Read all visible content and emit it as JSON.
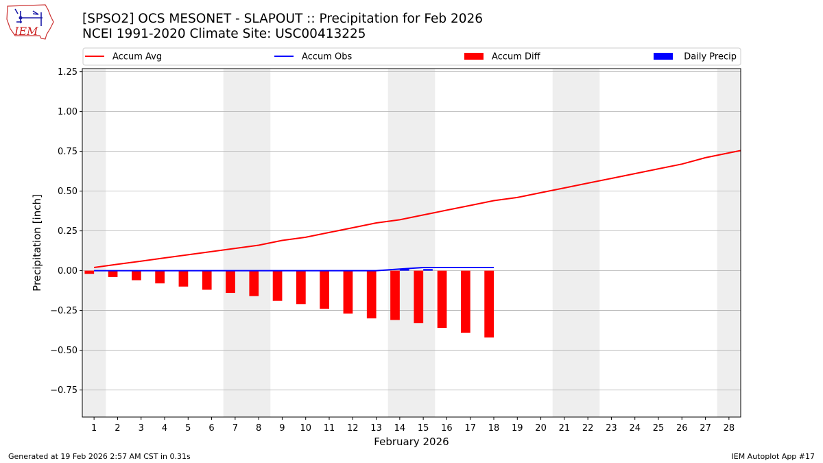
{
  "title_line1": "[SPSO2] OCS MESONET - SLAPOUT :: Precipitation for Feb 2026",
  "title_line2": "NCEI 1991-2020 Climate Site: USC00413225",
  "logo_text": "IEM",
  "footer_left": "Generated at 19 Feb 2026 2:57 AM CST in 0.31s",
  "footer_right": "IEM Autoplot App #17",
  "colors": {
    "accum_avg": "#ff0000",
    "accum_obs": "#0000ff",
    "accum_diff": "#ff0000",
    "daily_precip": "#0000ff",
    "weekend_band": "#eeeeee",
    "grid": "#b0b0b0"
  },
  "chart_data": {
    "type": "bar",
    "xlabel": "February 2026",
    "ylabel": "Precipitation [inch]",
    "xlim": [
      0.5,
      28.5
    ],
    "ylim": [
      -0.92,
      1.27
    ],
    "x_ticks": [
      1,
      2,
      3,
      4,
      5,
      6,
      7,
      8,
      9,
      10,
      11,
      12,
      13,
      14,
      15,
      16,
      17,
      18,
      19,
      20,
      21,
      22,
      23,
      24,
      25,
      26,
      27,
      28
    ],
    "x_tick_labels": [
      "1",
      "2",
      "3",
      "4",
      "5",
      "6",
      "7",
      "8",
      "9",
      "10",
      "11",
      "12",
      "13",
      "14",
      "15",
      "16",
      "17",
      "18",
      "19",
      "20",
      "21",
      "22",
      "23",
      "24",
      "25",
      "26",
      "27",
      "28"
    ],
    "y_ticks": [
      -0.75,
      -0.5,
      -0.25,
      0.0,
      0.25,
      0.5,
      0.75,
      1.0,
      1.25
    ],
    "y_tick_labels": [
      "−0.75",
      "−0.50",
      "−0.25",
      "0.00",
      "0.25",
      "0.50",
      "0.75",
      "1.00",
      "1.25"
    ],
    "grid": "horizontal",
    "weekend_days": [
      1,
      7,
      8,
      14,
      15,
      21,
      22,
      28
    ],
    "legend": {
      "placement": "top",
      "entries": [
        {
          "label": "Accum Avg",
          "kind": "line",
          "series": "accum_avg"
        },
        {
          "label": "Accum Obs",
          "kind": "line",
          "series": "accum_obs"
        },
        {
          "label": "Accum Diff",
          "kind": "bar",
          "series": "accum_diff"
        },
        {
          "label": "Daily Precip",
          "kind": "bar",
          "series": "daily_precip"
        }
      ]
    },
    "series": [
      {
        "name": "Accum Avg",
        "key": "accum_avg",
        "type": "line",
        "x": [
          1,
          2,
          3,
          4,
          5,
          6,
          7,
          8,
          9,
          10,
          11,
          12,
          13,
          14,
          15,
          16,
          17,
          18,
          19,
          20,
          21,
          22,
          23,
          24,
          25,
          26,
          27,
          28,
          28.5
        ],
        "values": [
          0.02,
          0.04,
          0.06,
          0.08,
          0.1,
          0.12,
          0.14,
          0.16,
          0.19,
          0.21,
          0.24,
          0.27,
          0.3,
          0.32,
          0.35,
          0.38,
          0.41,
          0.44,
          0.46,
          0.49,
          0.52,
          0.55,
          0.58,
          0.61,
          0.64,
          0.67,
          0.71,
          0.74,
          0.755
        ]
      },
      {
        "name": "Accum Obs",
        "key": "accum_obs",
        "type": "line",
        "x": [
          1,
          2,
          3,
          4,
          5,
          6,
          7,
          8,
          9,
          10,
          11,
          12,
          13,
          14,
          15,
          16,
          17,
          18
        ],
        "values": [
          0.0,
          0.0,
          0.0,
          0.0,
          0.0,
          0.0,
          0.0,
          0.0,
          0.0,
          0.0,
          0.0,
          0.0,
          0.0,
          0.01,
          0.02,
          0.02,
          0.02,
          0.02
        ]
      },
      {
        "name": "Accum Diff",
        "key": "accum_diff",
        "type": "bar",
        "offset": -0.2,
        "x": [
          1,
          2,
          3,
          4,
          5,
          6,
          7,
          8,
          9,
          10,
          11,
          12,
          13,
          14,
          15,
          16,
          17,
          18
        ],
        "values": [
          -0.02,
          -0.04,
          -0.06,
          -0.08,
          -0.1,
          -0.12,
          -0.14,
          -0.16,
          -0.19,
          -0.21,
          -0.24,
          -0.27,
          -0.3,
          -0.31,
          -0.33,
          -0.36,
          -0.39,
          -0.42
        ]
      },
      {
        "name": "Daily Precip",
        "key": "daily_precip",
        "type": "bar",
        "offset": 0.2,
        "x": [
          14,
          15
        ],
        "values": [
          0.01,
          0.01
        ]
      }
    ]
  }
}
